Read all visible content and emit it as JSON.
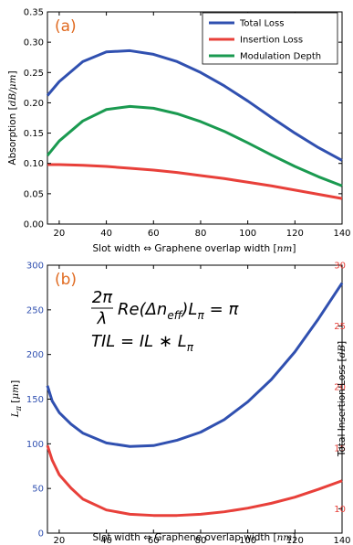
{
  "chart_data": [
    {
      "type": "line",
      "panel_label": "(a)",
      "xlabel": "Slot width ⇔ Graphene overlap width [nm]",
      "ylabel": "Absorption [dB/μm]",
      "xlim": [
        15,
        140
      ],
      "ylim": [
        0,
        0.35
      ],
      "xticks": [
        20,
        40,
        60,
        80,
        100,
        120,
        140
      ],
      "yticks": [
        "0.00",
        "0.05",
        "0.10",
        "0.15",
        "0.20",
        "0.25",
        "0.30",
        "0.35"
      ],
      "legend_position": "top-right",
      "x": [
        15,
        20,
        30,
        40,
        50,
        60,
        70,
        80,
        90,
        100,
        110,
        120,
        130,
        140
      ],
      "series": [
        {
          "name": "Total Loss",
          "color": "#3050b0",
          "values": [
            0.212,
            0.235,
            0.268,
            0.284,
            0.286,
            0.28,
            0.268,
            0.25,
            0.228,
            0.203,
            0.176,
            0.15,
            0.126,
            0.105
          ]
        },
        {
          "name": "Insertion Loss",
          "color": "#e8403a",
          "values": [
            0.098,
            0.098,
            0.097,
            0.095,
            0.092,
            0.089,
            0.085,
            0.08,
            0.075,
            0.069,
            0.063,
            0.056,
            0.049,
            0.042
          ]
        },
        {
          "name": "Modulation Depth",
          "color": "#1a9a50",
          "values": [
            0.113,
            0.137,
            0.17,
            0.189,
            0.194,
            0.191,
            0.182,
            0.169,
            0.153,
            0.134,
            0.114,
            0.095,
            0.078,
            0.063
          ]
        }
      ]
    },
    {
      "type": "line",
      "panel_label": "(b)",
      "xlabel": "Slot width ⇔ Graphene overlap width [nm]",
      "ylabel_left": "Lπ [μm]",
      "ylabel_right": "Total Insertion Loss [dB]",
      "xlim": [
        15,
        140
      ],
      "ylim_left": [
        0,
        300
      ],
      "ylim_right": [
        8,
        30
      ],
      "xticks": [
        20,
        40,
        60,
        80,
        100,
        120,
        140
      ],
      "yticks_left": [
        0,
        50,
        100,
        150,
        200,
        250,
        300
      ],
      "yticks_right": [
        10,
        15,
        20,
        25,
        30
      ],
      "equation_line1_lhs": "Re(Δn",
      "equation_line1_sub": "eff",
      "equation_line1_rhs": ")L",
      "equation_line1_end": "= π",
      "equation_line2": "TIL = IL ∗ L",
      "x": [
        15,
        17,
        20,
        25,
        30,
        40,
        50,
        60,
        70,
        80,
        90,
        100,
        110,
        120,
        130,
        140
      ],
      "series": [
        {
          "axis": "left",
          "color": "#3050b0",
          "values": [
            165,
            148,
            135,
            122,
            112,
            101,
            97,
            98,
            104,
            113,
            127,
            147,
            172,
            203,
            240,
            280
          ]
        },
        {
          "axis": "right",
          "color": "#e8403a",
          "values": [
            15.2,
            14.0,
            12.8,
            11.7,
            10.8,
            9.9,
            9.55,
            9.45,
            9.45,
            9.55,
            9.75,
            10.05,
            10.45,
            10.95,
            11.6,
            12.3
          ]
        }
      ]
    }
  ]
}
